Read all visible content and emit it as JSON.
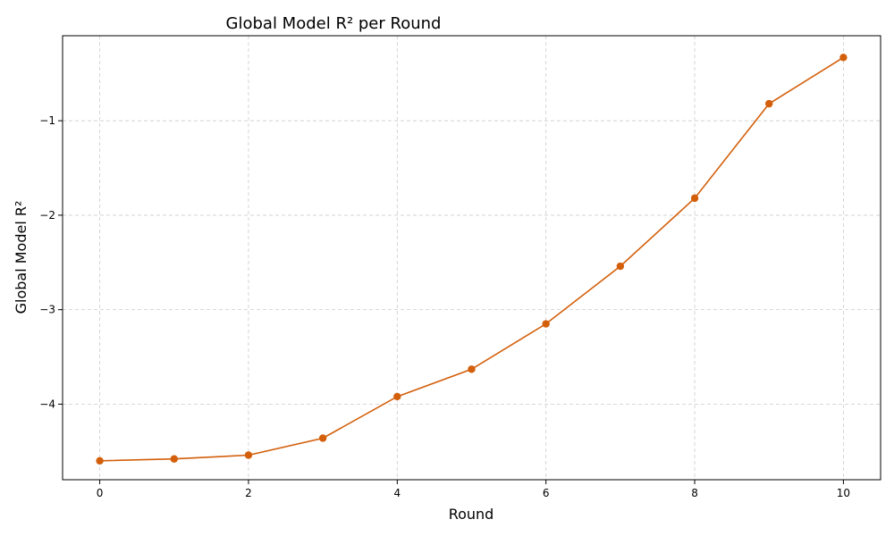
{
  "chart_data": {
    "type": "line",
    "title": "Global Model R² per Round",
    "xlabel": "Round",
    "ylabel": "Global Model R²",
    "x": [
      0,
      1,
      2,
      3,
      4,
      5,
      6,
      7,
      8,
      9,
      10
    ],
    "series": [
      {
        "values": [
          -4.6,
          -4.58,
          -4.54,
          -4.36,
          -3.92,
          -3.63,
          -3.15,
          -2.54,
          -1.82,
          -0.82,
          -0.33
        ],
        "color": "#d35f0a"
      }
    ],
    "xlim": [
      -0.5,
      10.5
    ],
    "ylim": [
      -4.8,
      -0.1
    ],
    "xticks": [
      0,
      2,
      4,
      6,
      8,
      10
    ],
    "yticks": [
      -4,
      -3,
      -2,
      -1
    ],
    "ytick_labels": [
      "−4",
      "−3",
      "−2",
      "−1"
    ],
    "grid": true,
    "marker": "circle"
  }
}
